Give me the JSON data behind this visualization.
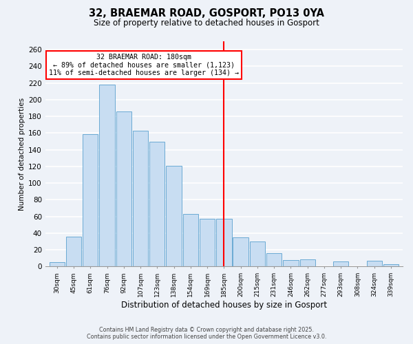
{
  "title": "32, BRAEMAR ROAD, GOSPORT, PO13 0YA",
  "subtitle": "Size of property relative to detached houses in Gosport",
  "xlabel": "Distribution of detached houses by size in Gosport",
  "ylabel": "Number of detached properties",
  "categories": [
    "30sqm",
    "45sqm",
    "61sqm",
    "76sqm",
    "92sqm",
    "107sqm",
    "123sqm",
    "138sqm",
    "154sqm",
    "169sqm",
    "185sqm",
    "200sqm",
    "215sqm",
    "231sqm",
    "246sqm",
    "262sqm",
    "277sqm",
    "293sqm",
    "308sqm",
    "324sqm",
    "339sqm"
  ],
  "values": [
    5,
    36,
    159,
    218,
    186,
    163,
    150,
    121,
    63,
    57,
    57,
    35,
    30,
    16,
    8,
    9,
    0,
    6,
    0,
    7,
    3
  ],
  "bar_color": "#c8ddf2",
  "bar_edge_color": "#6aaad4",
  "vline_x": 10,
  "vline_label": "32 BRAEMAR ROAD: 180sqm",
  "annotation_line1": "← 89% of detached houses are smaller (1,123)",
  "annotation_line2": "11% of semi-detached houses are larger (134) →",
  "ylim": [
    0,
    270
  ],
  "yticks": [
    0,
    20,
    40,
    60,
    80,
    100,
    120,
    140,
    160,
    180,
    200,
    220,
    240,
    260
  ],
  "background_color": "#eef2f8",
  "grid_color": "#ffffff",
  "footer_line1": "Contains HM Land Registry data © Crown copyright and database right 2025.",
  "footer_line2": "Contains public sector information licensed under the Open Government Licence v3.0."
}
